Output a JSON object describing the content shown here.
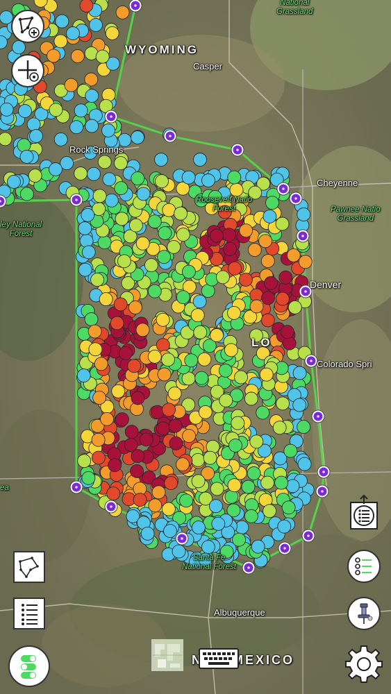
{
  "map": {
    "labels": {
      "wyoming": "WYOMING",
      "new_mexico": "NEW MEXICO",
      "casper": "Casper",
      "cheyenne": "Cheyenne",
      "denver": "Denver",
      "colorado_springs": "Colorado Spri",
      "albuquerque": "Albuquerque",
      "rock_springs": "Rock Springs",
      "lo_fragment": "LO",
      "national_grassland": "National\nGrassland",
      "pawnee": "Pawnee Natio\nGrassland",
      "ashley": "ley National\nForest",
      "roosevelt": "Roosevelt Natio\nForest",
      "santa_fe": "Santa Fe\nNational Forest",
      "fragment_ea": "ea"
    },
    "colors": {
      "boundary": "#55d24a",
      "terrain_base": "#7f7a5c",
      "marker_blue": "#4fc3e8",
      "marker_green": "#4cd964",
      "marker_lime": "#b7e04a",
      "marker_yellow": "#f5d63a",
      "marker_orange": "#f39c2b",
      "marker_red": "#e2482a",
      "marker_maroon": "#a8123a",
      "vertex_purple": "#7a2bd1"
    }
  },
  "controls": {
    "add_area_icon": "draw-polygon-add-icon",
    "add_point_icon": "crosshair-add-icon",
    "polygon_tool_icon": "polygon-tool-icon",
    "list_icon": "list-icon",
    "layers_toggle_icon": "toggles-icon",
    "map_thumbnail_icon": "map-thumbnail-icon",
    "keyboard_icon": "keyboard-icon",
    "share_list_icon": "share-list-icon",
    "checklist_icon": "checklist-icon",
    "pin_icon": "pin-icon",
    "settings_icon": "gear-icon"
  }
}
